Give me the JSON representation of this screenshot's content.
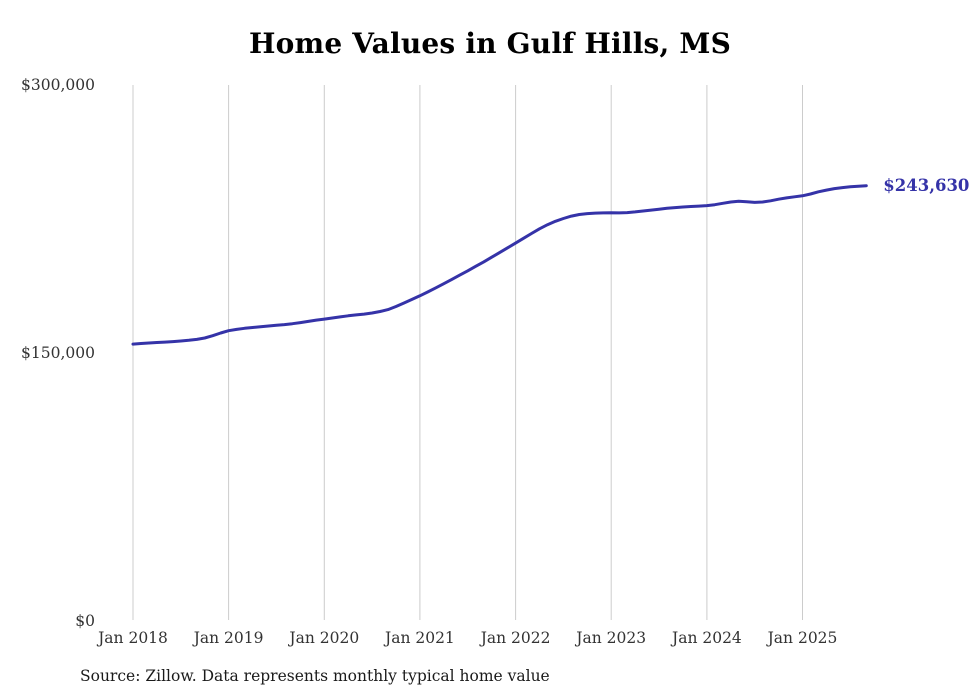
{
  "page": {
    "background": "#ffffff"
  },
  "chart_data": {
    "type": "line",
    "title": "Home Values in Gulf Hills, MS",
    "series_name": "Monthly typical home value",
    "x_unit": "month",
    "x_start": "2018-01",
    "x_end": "2025-09",
    "x_tick_labels": [
      "Jan 2018",
      "Jan 2019",
      "Jan 2020",
      "Jan 2021",
      "Jan 2022",
      "Jan 2023",
      "Jan 2024",
      "Jan 2025"
    ],
    "y_ticks": [
      0,
      150000,
      300000
    ],
    "y_tick_labels": [
      "$0",
      "$150,000",
      "$300,000"
    ],
    "ylim": [
      0,
      300000
    ],
    "grid": "vertical-only",
    "legend": "none",
    "line_color": "#3533a8",
    "grid_color": "#cccccc",
    "label_color": "#333333",
    "end_label": "$243,630",
    "values": [
      155000,
      155300,
      155600,
      155900,
      156100,
      156400,
      156700,
      157100,
      157600,
      158400,
      159700,
      161200,
      162500,
      163200,
      163800,
      164300,
      164700,
      165100,
      165500,
      165900,
      166400,
      167000,
      167700,
      168400,
      169000,
      169600,
      170200,
      170800,
      171300,
      171800,
      172400,
      173200,
      174300,
      176000,
      178000,
      180000,
      182000,
      184200,
      186500,
      188800,
      191200,
      193600,
      196000,
      198500,
      201000,
      203600,
      206200,
      208900,
      211500,
      214200,
      216900,
      219500,
      221800,
      223700,
      225300,
      226600,
      227500,
      228000,
      228300,
      228400,
      228500,
      228400,
      228600,
      229000,
      229500,
      230000,
      230500,
      231000,
      231400,
      231700,
      232000,
      232200,
      232500,
      233000,
      233800,
      234500,
      234900,
      234700,
      234300,
      234500,
      235200,
      236100,
      236800,
      237400,
      238000,
      239000,
      240200,
      241200,
      242000,
      242600,
      243000,
      243300,
      243630
    ]
  },
  "source_note": "Source: Zillow. Data represents monthly typical home value"
}
